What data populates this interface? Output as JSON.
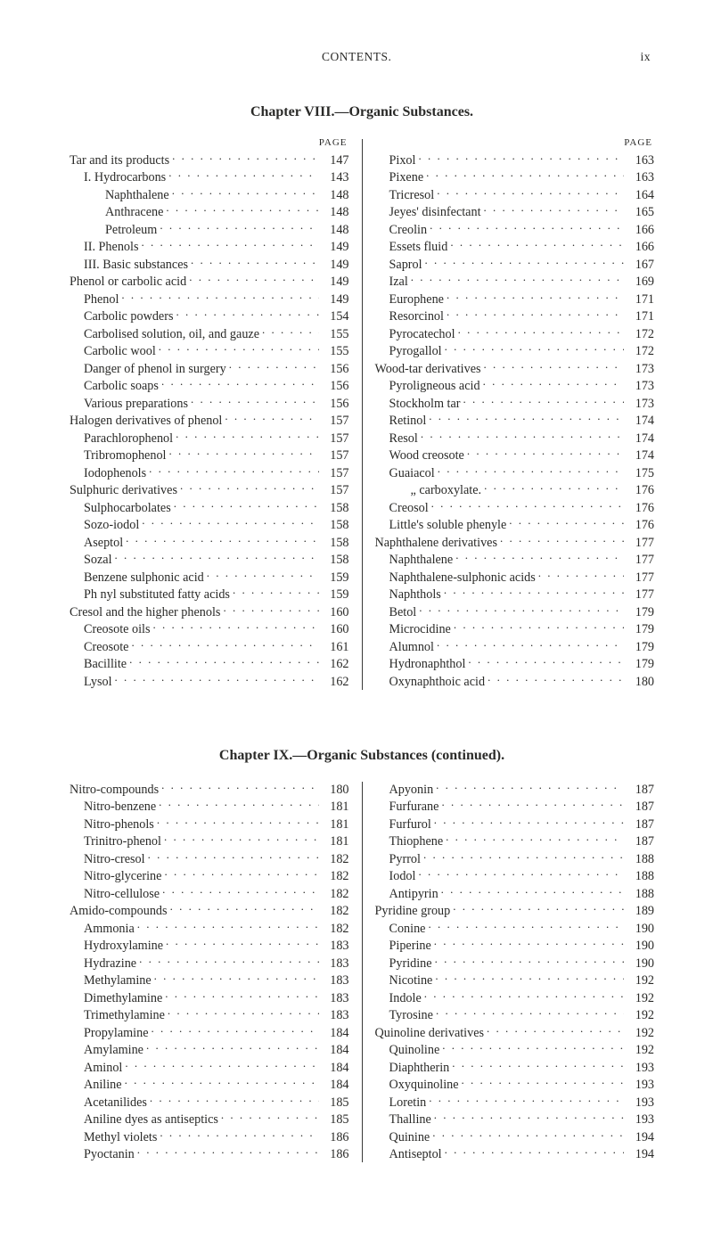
{
  "running_header": {
    "left": "CONTENTS.",
    "right": "ix"
  },
  "chapters": [
    {
      "title": "Chapter VIII.—Organic Substances.",
      "page_label": "PAGE",
      "left": [
        {
          "t": "Tar and its products",
          "p": "147",
          "i": 0
        },
        {
          "t": "I. Hydrocarbons",
          "p": "143",
          "i": 1
        },
        {
          "t": "Naphthalene",
          "p": "148",
          "i": 2
        },
        {
          "t": "Anthracene",
          "p": "148",
          "i": 2
        },
        {
          "t": "Petroleum",
          "p": "148",
          "i": 2
        },
        {
          "t": "II. Phenols",
          "p": "149",
          "i": 1
        },
        {
          "t": "III. Basic substances",
          "p": "149",
          "i": 1
        },
        {
          "t": "Phenol or carbolic acid",
          "p": "149",
          "i": 0
        },
        {
          "t": "Phenol",
          "p": "149",
          "i": 1
        },
        {
          "t": "Carbolic powders",
          "p": "154",
          "i": 1
        },
        {
          "t": "Carbolised solution, oil, and gauze",
          "p": "155",
          "i": 1
        },
        {
          "t": "Carbolic wool",
          "p": "155",
          "i": 1
        },
        {
          "t": "Danger of phenol in surgery",
          "p": "156",
          "i": 1
        },
        {
          "t": "Carbolic soaps",
          "p": "156",
          "i": 1
        },
        {
          "t": "Various preparations",
          "p": "156",
          "i": 1
        },
        {
          "t": "Halogen derivatives of phenol",
          "p": "157",
          "i": 0
        },
        {
          "t": "Parachlorophenol",
          "p": "157",
          "i": 1
        },
        {
          "t": "Tribromophenol",
          "p": "157",
          "i": 1
        },
        {
          "t": "Iodophenols",
          "p": "157",
          "i": 1
        },
        {
          "t": "Sulphuric derivatives",
          "p": "157",
          "i": 0
        },
        {
          "t": "Sulphocarbolates",
          "p": "158",
          "i": 1
        },
        {
          "t": "Sozo-iodol",
          "p": "158",
          "i": 1
        },
        {
          "t": "Aseptol",
          "p": "158",
          "i": 1
        },
        {
          "t": "Sozal",
          "p": "158",
          "i": 1
        },
        {
          "t": "Benzene sulphonic acid",
          "p": "159",
          "i": 1
        },
        {
          "t": "Ph nyl substituted fatty acids",
          "p": "159",
          "i": 1
        },
        {
          "t": "Cresol and the higher phenols",
          "p": "160",
          "i": 0
        },
        {
          "t": "Creosote oils",
          "p": "160",
          "i": 1
        },
        {
          "t": "Creosote",
          "p": "161",
          "i": 1
        },
        {
          "t": "Bacillite",
          "p": "162",
          "i": 1
        },
        {
          "t": "Lysol",
          "p": "162",
          "i": 1
        }
      ],
      "right": [
        {
          "t": "Pixol",
          "p": "163",
          "i": 1
        },
        {
          "t": "Pixene",
          "p": "163",
          "i": 1
        },
        {
          "t": "Tricresol",
          "p": "164",
          "i": 1
        },
        {
          "t": "Jeyes' disinfectant",
          "p": "165",
          "i": 1
        },
        {
          "t": "Creolin",
          "p": "166",
          "i": 1
        },
        {
          "t": "Essets fluid",
          "p": "166",
          "i": 1
        },
        {
          "t": "Saprol",
          "p": "167",
          "i": 1
        },
        {
          "t": "Izal",
          "p": "169",
          "i": 1
        },
        {
          "t": "Europhene",
          "p": "171",
          "i": 1
        },
        {
          "t": "Resorcinol",
          "p": "171",
          "i": 1
        },
        {
          "t": "Pyrocatechol",
          "p": "172",
          "i": 1
        },
        {
          "t": "Pyrogallol",
          "p": "172",
          "i": 1
        },
        {
          "t": "Wood-tar derivatives",
          "p": "173",
          "i": 0
        },
        {
          "t": "Pyroligneous acid",
          "p": "173",
          "i": 1
        },
        {
          "t": "Stockholm tar",
          "p": "173",
          "i": 1
        },
        {
          "t": "Retinol",
          "p": "174",
          "i": 1
        },
        {
          "t": "Resol",
          "p": "174",
          "i": 1
        },
        {
          "t": "Wood creosote",
          "p": "174",
          "i": 1
        },
        {
          "t": "Guaiacol",
          "p": "175",
          "i": 1
        },
        {
          "t": "„       carboxylate.",
          "p": "176",
          "i": 2
        },
        {
          "t": "Creosol",
          "p": "176",
          "i": 1
        },
        {
          "t": "Little's soluble phenyle",
          "p": "176",
          "i": 1
        },
        {
          "t": "Naphthalene derivatives",
          "p": "177",
          "i": 0
        },
        {
          "t": "Naphthalene",
          "p": "177",
          "i": 1
        },
        {
          "t": "Naphthalene-sulphonic acids",
          "p": "177",
          "i": 1
        },
        {
          "t": "Naphthols",
          "p": "177",
          "i": 1
        },
        {
          "t": "Betol",
          "p": "179",
          "i": 1
        },
        {
          "t": "Microcidine",
          "p": "179",
          "i": 1
        },
        {
          "t": "Alumnol",
          "p": "179",
          "i": 1
        },
        {
          "t": "Hydronaphthol",
          "p": "179",
          "i": 1
        },
        {
          "t": "Oxynaphthoic acid",
          "p": "180",
          "i": 1
        }
      ]
    },
    {
      "title": "Chapter IX.—Organic Substances (continued).",
      "page_label": "",
      "left": [
        {
          "t": "Nitro-compounds",
          "p": "180",
          "i": 0
        },
        {
          "t": "Nitro-benzene",
          "p": "181",
          "i": 1
        },
        {
          "t": "Nitro-phenols",
          "p": "181",
          "i": 1
        },
        {
          "t": "Trinitro-phenol",
          "p": "181",
          "i": 1
        },
        {
          "t": "Nitro-cresol",
          "p": "182",
          "i": 1
        },
        {
          "t": "Nitro-glycerine",
          "p": "182",
          "i": 1
        },
        {
          "t": "Nitro-cellulose",
          "p": "182",
          "i": 1
        },
        {
          "t": "Amido-compounds",
          "p": "182",
          "i": 0
        },
        {
          "t": "Ammonia",
          "p": "182",
          "i": 1
        },
        {
          "t": "Hydroxylamine",
          "p": "183",
          "i": 1
        },
        {
          "t": "Hydrazine",
          "p": "183",
          "i": 1
        },
        {
          "t": "Methylamine",
          "p": "183",
          "i": 1
        },
        {
          "t": "Dimethylamine",
          "p": "183",
          "i": 1
        },
        {
          "t": "Trimethylamine",
          "p": "183",
          "i": 1
        },
        {
          "t": "Propylamine",
          "p": "184",
          "i": 1
        },
        {
          "t": "Amylamine",
          "p": "184",
          "i": 1
        },
        {
          "t": "Aminol",
          "p": "184",
          "i": 1
        },
        {
          "t": "Aniline",
          "p": "184",
          "i": 1
        },
        {
          "t": "Acetanilides",
          "p": "185",
          "i": 1
        },
        {
          "t": "Aniline dyes as antiseptics",
          "p": "185",
          "i": 1
        },
        {
          "t": "Methyl violets",
          "p": "186",
          "i": 1
        },
        {
          "t": "Pyoctanin",
          "p": "186",
          "i": 1
        }
      ],
      "right": [
        {
          "t": "Apyonin",
          "p": "187",
          "i": 1
        },
        {
          "t": "Furfurane",
          "p": "187",
          "i": 1
        },
        {
          "t": "Furfurol",
          "p": "187",
          "i": 1
        },
        {
          "t": "Thiophene",
          "p": "187",
          "i": 1
        },
        {
          "t": "Pyrrol",
          "p": "188",
          "i": 1
        },
        {
          "t": "Iodol",
          "p": "188",
          "i": 1
        },
        {
          "t": "Antipyrin",
          "p": "188",
          "i": 1
        },
        {
          "t": "Pyridine group",
          "p": "189",
          "i": 0
        },
        {
          "t": "Conine",
          "p": "190",
          "i": 1
        },
        {
          "t": "Piperine",
          "p": "190",
          "i": 1
        },
        {
          "t": "Pyridine",
          "p": "190",
          "i": 1
        },
        {
          "t": "Nicotine",
          "p": "192",
          "i": 1
        },
        {
          "t": "Indole",
          "p": "192",
          "i": 1
        },
        {
          "t": "Tyrosine",
          "p": "192",
          "i": 1
        },
        {
          "t": "Quinoline derivatives",
          "p": "192",
          "i": 0
        },
        {
          "t": "Quinoline",
          "p": "192",
          "i": 1
        },
        {
          "t": "Diaphtherin",
          "p": "193",
          "i": 1
        },
        {
          "t": "Oxyquinoline",
          "p": "193",
          "i": 1
        },
        {
          "t": "Loretin",
          "p": "193",
          "i": 1
        },
        {
          "t": "Thalline",
          "p": "193",
          "i": 1
        },
        {
          "t": "Quinine",
          "p": "194",
          "i": 1
        },
        {
          "t": "Antiseptol",
          "p": "194",
          "i": 1
        }
      ]
    }
  ]
}
